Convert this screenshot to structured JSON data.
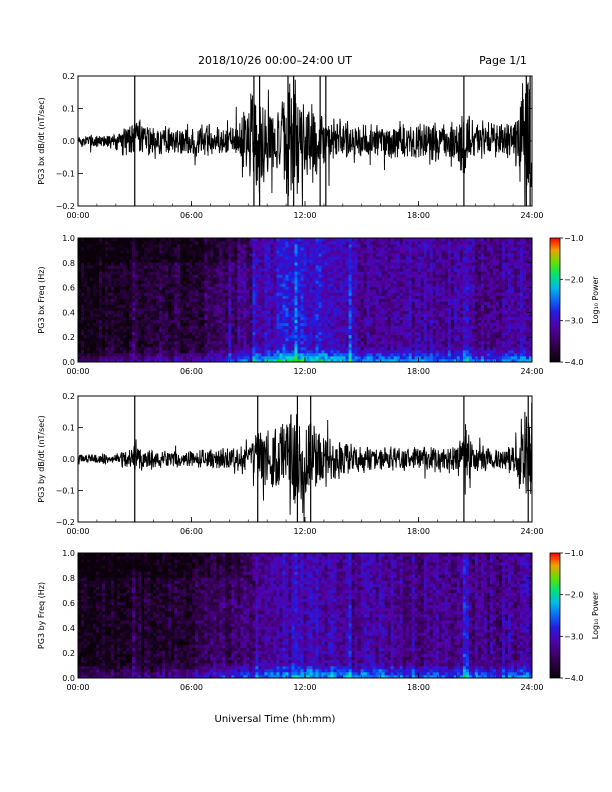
{
  "header": {
    "title": "2018/10/26  00:00–24:00 UT",
    "page": "Page 1/1"
  },
  "xlabel": "Universal Time (hh:mm)",
  "chart_data": [
    {
      "type": "line",
      "ylabel": "PG3 bx dB/dt (nT/sec)",
      "xlim_hours": [
        0,
        24
      ],
      "x_ticks": [
        "00:00",
        "06:00",
        "12:00",
        "18:00",
        "24:00"
      ],
      "ylim": [
        -0.2,
        0.2
      ],
      "y_ticks": [
        "0.2",
        "0.1",
        "0.0",
        "−0.1",
        "−0.2"
      ],
      "envelope": {
        "x_hours": [
          0,
          2,
          3,
          4,
          6,
          8.5,
          9.2,
          9.8,
          10.5,
          11,
          11.5,
          12,
          12.5,
          13,
          14,
          15,
          16,
          18,
          20,
          20.3,
          21,
          22,
          23,
          23.6,
          24
        ],
        "amplitude": [
          0.02,
          0.03,
          0.08,
          0.05,
          0.05,
          0.06,
          0.2,
          0.15,
          0.1,
          0.2,
          0.2,
          0.15,
          0.13,
          0.09,
          0.07,
          0.07,
          0.06,
          0.06,
          0.07,
          0.16,
          0.07,
          0.06,
          0.07,
          0.2,
          0.2
        ]
      },
      "spikes_hours": [
        3.0,
        9.3,
        9.6,
        11.1,
        11.4,
        12.8,
        13.1,
        20.4,
        23.7,
        23.9
      ]
    },
    {
      "type": "heatmap",
      "ylabel": "PG3 bx Freq (Hz)",
      "xlim_hours": [
        0,
        24
      ],
      "x_ticks": [
        "00:00",
        "06:00",
        "12:00",
        "18:00",
        "24:00"
      ],
      "ylim": [
        0,
        1.0
      ],
      "y_ticks": [
        "1.0",
        "0.8",
        "0.6",
        "0.4",
        "0.2",
        "0.0"
      ],
      "colorbar": {
        "label": "Log₁₀ Power",
        "range": [
          -4.0,
          -1.0
        ],
        "ticks": [
          "−1.0",
          "−2.0",
          "−3.0",
          "−4.0"
        ]
      },
      "level": {
        "x_hours": [
          0,
          2,
          4,
          6,
          8,
          9,
          10,
          11,
          12,
          13,
          14,
          15,
          16,
          18,
          20,
          22,
          24
        ],
        "log_power": [
          -3.9,
          -3.8,
          -3.7,
          -3.7,
          -3.4,
          -3.3,
          -3.0,
          -2.9,
          -2.9,
          -3.0,
          -3.1,
          -3.2,
          -3.1,
          -3.2,
          -3.2,
          -3.3,
          -3.1
        ]
      },
      "bright_lines_hours": [
        3.0,
        8.0,
        9.3,
        11.5,
        14.4,
        20.5
      ]
    },
    {
      "type": "line",
      "ylabel": "PG3 by dB/dt (nT/sec)",
      "xlim_hours": [
        0,
        24
      ],
      "x_ticks": [
        "00:00",
        "06:00",
        "12:00",
        "18:00",
        "24:00"
      ],
      "ylim": [
        -0.2,
        0.2
      ],
      "y_ticks": [
        "0.2",
        "0.1",
        "0.0",
        "−0.1",
        "−0.2"
      ],
      "envelope": {
        "x_hours": [
          0,
          2,
          3,
          4,
          6,
          8,
          9,
          10,
          11,
          11.5,
          12,
          12.5,
          13,
          14,
          16,
          18,
          20,
          20.5,
          21,
          22,
          23,
          23.7,
          24
        ],
        "amplitude": [
          0.015,
          0.02,
          0.05,
          0.03,
          0.03,
          0.04,
          0.07,
          0.11,
          0.15,
          0.2,
          0.18,
          0.14,
          0.1,
          0.06,
          0.04,
          0.04,
          0.05,
          0.12,
          0.05,
          0.04,
          0.05,
          0.2,
          0.2
        ]
      },
      "spikes_hours": [
        3.0,
        9.5,
        11.6,
        12.3,
        20.4,
        23.8
      ]
    },
    {
      "type": "heatmap",
      "ylabel": "PG3 by Freq (Hz)",
      "xlim_hours": [
        0,
        24
      ],
      "x_ticks": [
        "00:00",
        "06:00",
        "12:00",
        "18:00",
        "24:00"
      ],
      "ylim": [
        0,
        1.0
      ],
      "y_ticks": [
        "1.0",
        "0.8",
        "0.6",
        "0.4",
        "0.2",
        "0.0"
      ],
      "colorbar": {
        "label": "Log₁₀ Power",
        "range": [
          -4.0,
          -1.0
        ],
        "ticks": [
          "−1.0",
          "−2.0",
          "−3.0",
          "−4.0"
        ]
      },
      "level": {
        "x_hours": [
          0,
          2,
          4,
          6,
          8,
          9,
          10,
          11,
          12,
          13,
          14,
          15,
          16,
          18,
          20,
          22,
          24
        ],
        "log_power": [
          -3.9,
          -3.85,
          -3.8,
          -3.7,
          -3.5,
          -3.4,
          -3.2,
          -3.1,
          -3.0,
          -3.1,
          -3.2,
          -3.2,
          -3.2,
          -3.3,
          -3.3,
          -3.3,
          -3.2
        ]
      },
      "bright_lines_hours": [
        3.0,
        9.5,
        14.4,
        20.5
      ]
    }
  ]
}
